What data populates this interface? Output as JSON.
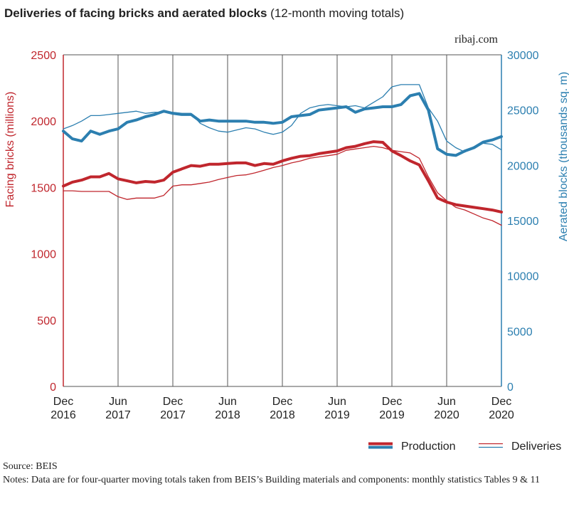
{
  "title_bold": "Deliveries of facing bricks and aerated blocks",
  "title_rest": "(12-month moving totals)",
  "site": "ribaj.com",
  "source": "Source: BEIS",
  "notes": "Notes: Data are for four-quarter moving totals taken from BEIS’s Building materials and components: monthly statistics Tables 9 & 11",
  "colors": {
    "bricks": "#c0262d",
    "blocks": "#2c7fb0",
    "grid": "#555555"
  },
  "chart_data": {
    "type": "line",
    "title": "Deliveries of facing bricks and aerated blocks (12-month moving totals)",
    "ylabel_left": "Facing bricks (millions)",
    "ylabel_right": "Aerated blocks (thousands sq. m)",
    "ylim_left": [
      0,
      2500
    ],
    "ylim_right": [
      0,
      30000
    ],
    "yticks_left": [
      "0",
      "500",
      "1000",
      "1500",
      "2000",
      "2500"
    ],
    "yticks_right": [
      "0",
      "5000",
      "10000",
      "15000",
      "20000",
      "25000",
      "30000"
    ],
    "xticks": [
      {
        "m": "Dec",
        "y": "2016"
      },
      {
        "m": "Jun",
        "y": "2017"
      },
      {
        "m": "Dec",
        "y": "2017"
      },
      {
        "m": "Jun",
        "y": "2018"
      },
      {
        "m": "Dec",
        "y": "2018"
      },
      {
        "m": "Jun",
        "y": "2019"
      },
      {
        "m": "Dec",
        "y": "2019"
      },
      {
        "m": "Jun",
        "y": "2020"
      },
      {
        "m": "Dec",
        "y": "2020"
      }
    ],
    "x": [
      "Dec 2016",
      "Jan 2017",
      "Feb 2017",
      "Mar 2017",
      "Apr 2017",
      "May 2017",
      "Jun 2017",
      "Jul 2017",
      "Aug 2017",
      "Sep 2017",
      "Oct 2017",
      "Nov 2017",
      "Dec 2017",
      "Jan 2018",
      "Feb 2018",
      "Mar 2018",
      "Apr 2018",
      "May 2018",
      "Jun 2018",
      "Jul 2018",
      "Aug 2018",
      "Sep 2018",
      "Oct 2018",
      "Nov 2018",
      "Dec 2018",
      "Jan 2019",
      "Feb 2019",
      "Mar 2019",
      "Apr 2019",
      "May 2019",
      "Jun 2019",
      "Jul 2019",
      "Aug 2019",
      "Sep 2019",
      "Oct 2019",
      "Nov 2019",
      "Dec 2019",
      "Jan 2020",
      "Feb 2020",
      "Mar 2020",
      "Apr 2020",
      "May 2020",
      "Jun 2020",
      "Jul 2020",
      "Aug 2020",
      "Sep 2020",
      "Oct 2020",
      "Nov 2020",
      "Dec 2020"
    ],
    "legend": [
      {
        "label": "Production",
        "style": "thick"
      },
      {
        "label": "Deliveries",
        "style": "thin"
      }
    ],
    "series": [
      {
        "name": "Production",
        "axis": "left",
        "unit": "bricks",
        "style": "thick",
        "values": [
          1510,
          1540,
          1555,
          1580,
          1580,
          1605,
          1565,
          1550,
          1535,
          1545,
          1540,
          1555,
          1615,
          1640,
          1665,
          1660,
          1675,
          1675,
          1680,
          1685,
          1685,
          1665,
          1680,
          1675,
          1700,
          1720,
          1735,
          1740,
          1755,
          1765,
          1775,
          1800,
          1810,
          1830,
          1845,
          1840,
          1775,
          1740,
          1700,
          1670,
          1550,
          1420,
          1390,
          1370,
          1360,
          1350,
          1340,
          1330,
          1315
        ]
      },
      {
        "name": "Deliveries",
        "axis": "left",
        "unit": "bricks",
        "style": "thin",
        "values": [
          1475,
          1475,
          1470,
          1470,
          1470,
          1470,
          1430,
          1410,
          1420,
          1420,
          1420,
          1440,
          1510,
          1520,
          1520,
          1530,
          1540,
          1560,
          1575,
          1590,
          1595,
          1610,
          1630,
          1650,
          1665,
          1685,
          1700,
          1720,
          1730,
          1740,
          1750,
          1780,
          1790,
          1800,
          1810,
          1800,
          1780,
          1770,
          1760,
          1720,
          1580,
          1460,
          1400,
          1350,
          1330,
          1300,
          1270,
          1250,
          1215
        ]
      },
      {
        "name": "Production",
        "axis": "right",
        "unit": "blocks",
        "style": "thick",
        "values": [
          23100,
          22400,
          22200,
          23100,
          22800,
          23100,
          23300,
          23900,
          24100,
          24400,
          24600,
          24900,
          24700,
          24600,
          24600,
          24000,
          24100,
          24000,
          24000,
          24000,
          24000,
          23900,
          23900,
          23800,
          23900,
          24400,
          24500,
          24600,
          25000,
          25100,
          25200,
          25300,
          24800,
          25100,
          25200,
          25300,
          25300,
          25500,
          26300,
          26500,
          25000,
          21500,
          21000,
          20900,
          21300,
          21600,
          22100,
          22300,
          22600
        ]
      },
      {
        "name": "Deliveries",
        "axis": "right",
        "unit": "blocks",
        "style": "thin",
        "values": [
          23300,
          23600,
          24000,
          24500,
          24500,
          24600,
          24700,
          24800,
          24900,
          24700,
          24800,
          24800,
          24800,
          24700,
          24700,
          23800,
          23400,
          23100,
          23000,
          23200,
          23400,
          23300,
          23000,
          22800,
          23000,
          23600,
          24700,
          25200,
          25400,
          25500,
          25400,
          25300,
          25400,
          25200,
          25700,
          26200,
          27100,
          27300,
          27300,
          27300,
          25200,
          24000,
          22200,
          21600,
          21200,
          21700,
          22000,
          21900,
          21400
        ]
      }
    ]
  }
}
